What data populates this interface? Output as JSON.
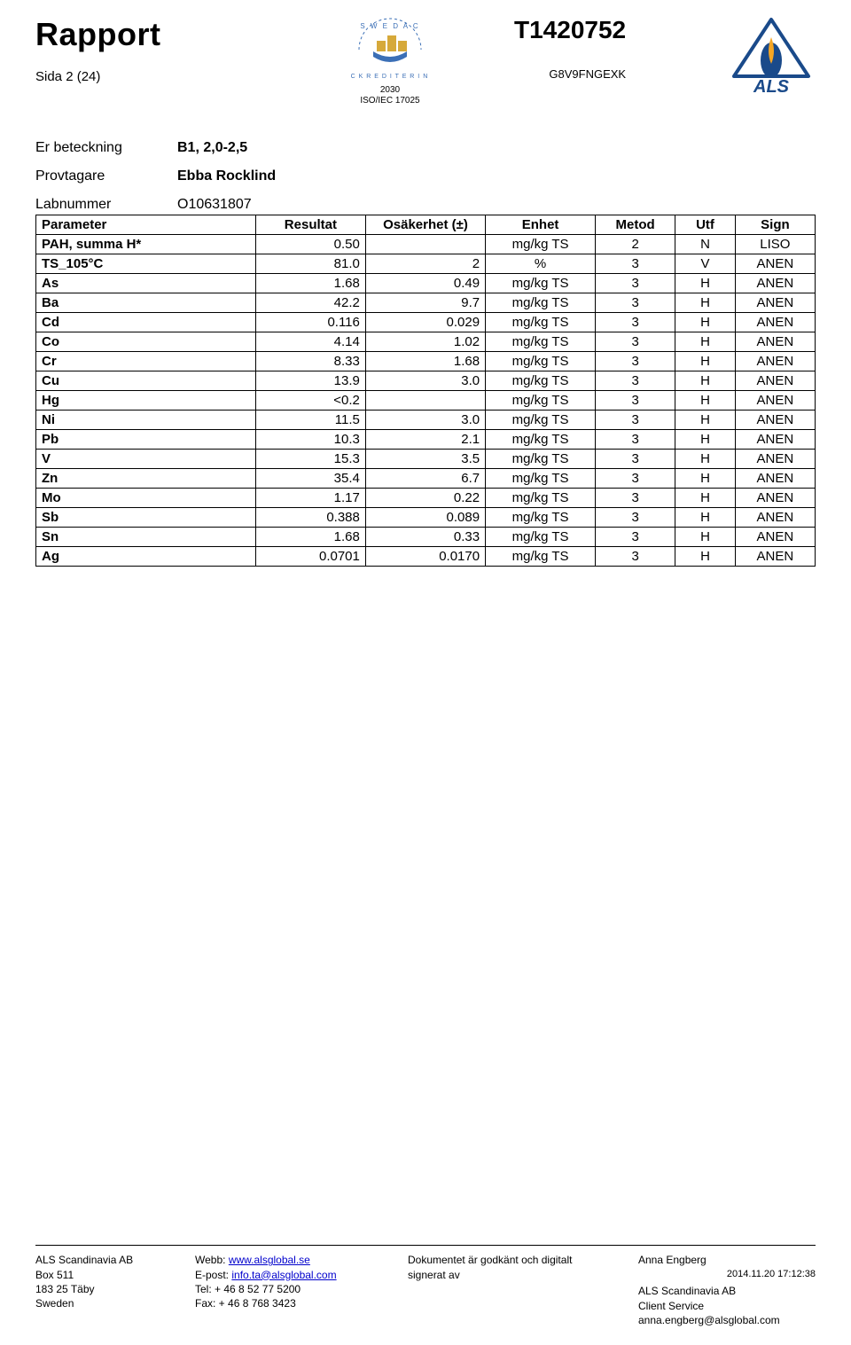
{
  "header": {
    "title": "Rapport",
    "page_indicator": "Sida 2 (24)",
    "doc_id": "T1420752",
    "doc_sub": "G8V9FNGEXK",
    "accreditor": {
      "num": "2030",
      "std": "ISO/IEC 17025"
    },
    "company_logo_text": "ALS"
  },
  "meta": {
    "er_beteckning_label": "Er beteckning",
    "er_beteckning_value": "B1, 2,0-2,5",
    "provtagare_label": "Provtagare",
    "provtagare_value": "Ebba Rocklind",
    "labnummer_label": "Labnummer",
    "labnummer_value": "O10631807"
  },
  "table": {
    "columns": [
      "Parameter",
      "Resultat",
      "Osäkerhet (±)",
      "Enhet",
      "Metod",
      "Utf",
      "Sign"
    ],
    "rows": [
      [
        "PAH, summa H*",
        "0.50",
        "",
        "mg/kg TS",
        "2",
        "N",
        "LISO"
      ],
      [
        "TS_105°C",
        "81.0",
        "2",
        "%",
        "3",
        "V",
        "ANEN"
      ],
      [
        "As",
        "1.68",
        "0.49",
        "mg/kg TS",
        "3",
        "H",
        "ANEN"
      ],
      [
        "Ba",
        "42.2",
        "9.7",
        "mg/kg TS",
        "3",
        "H",
        "ANEN"
      ],
      [
        "Cd",
        "0.116",
        "0.029",
        "mg/kg TS",
        "3",
        "H",
        "ANEN"
      ],
      [
        "Co",
        "4.14",
        "1.02",
        "mg/kg TS",
        "3",
        "H",
        "ANEN"
      ],
      [
        "Cr",
        "8.33",
        "1.68",
        "mg/kg TS",
        "3",
        "H",
        "ANEN"
      ],
      [
        "Cu",
        "13.9",
        "3.0",
        "mg/kg TS",
        "3",
        "H",
        "ANEN"
      ],
      [
        "Hg",
        "<0.2",
        "",
        "mg/kg TS",
        "3",
        "H",
        "ANEN"
      ],
      [
        "Ni",
        "11.5",
        "3.0",
        "mg/kg TS",
        "3",
        "H",
        "ANEN"
      ],
      [
        "Pb",
        "10.3",
        "2.1",
        "mg/kg TS",
        "3",
        "H",
        "ANEN"
      ],
      [
        "V",
        "15.3",
        "3.5",
        "mg/kg TS",
        "3",
        "H",
        "ANEN"
      ],
      [
        "Zn",
        "35.4",
        "6.7",
        "mg/kg TS",
        "3",
        "H",
        "ANEN"
      ],
      [
        "Mo",
        "1.17",
        "0.22",
        "mg/kg TS",
        "3",
        "H",
        "ANEN"
      ],
      [
        "Sb",
        "0.388",
        "0.089",
        "mg/kg TS",
        "3",
        "H",
        "ANEN"
      ],
      [
        "Sn",
        "1.68",
        "0.33",
        "mg/kg TS",
        "3",
        "H",
        "ANEN"
      ],
      [
        "Ag",
        "0.0701",
        "0.0170",
        "mg/kg TS",
        "3",
        "H",
        "ANEN"
      ]
    ]
  },
  "footer": {
    "col1": {
      "l1": "ALS Scandinavia AB",
      "l2": "Box 511",
      "l3": "183 25 Täby",
      "l4": "Sweden"
    },
    "col2": {
      "l1_label": "Webb: ",
      "l1_link": "www.alsglobal.se",
      "l2_label": "E-post: ",
      "l2_link": "info.ta@alsglobal.com",
      "l3": "Tel: + 46 8 52 77 5200",
      "l4": "Fax: + 46 8 768 3423"
    },
    "col3": {
      "l1": "Dokumentet är godkänt och digitalt",
      "l2": "signerat av"
    },
    "col4": {
      "l1": "Anna Engberg",
      "l2": "2014.11.20 17:12:38",
      "l3": "ALS Scandinavia AB",
      "l4": "Client Service",
      "l5": "anna.engberg@alsglobal.com"
    }
  },
  "style": {
    "title_fontsize": 36,
    "docid_fontsize": 28,
    "table_fontsize": 15,
    "meta_fontsize": 16,
    "footer_fontsize": 12,
    "border_color": "#000000",
    "link_color": "#0000cc",
    "als_blue": "#1a4a8a",
    "als_flame": "#f6a623",
    "swedac_blue": "#3b6fb6",
    "swedac_gold": "#d6a93a"
  }
}
